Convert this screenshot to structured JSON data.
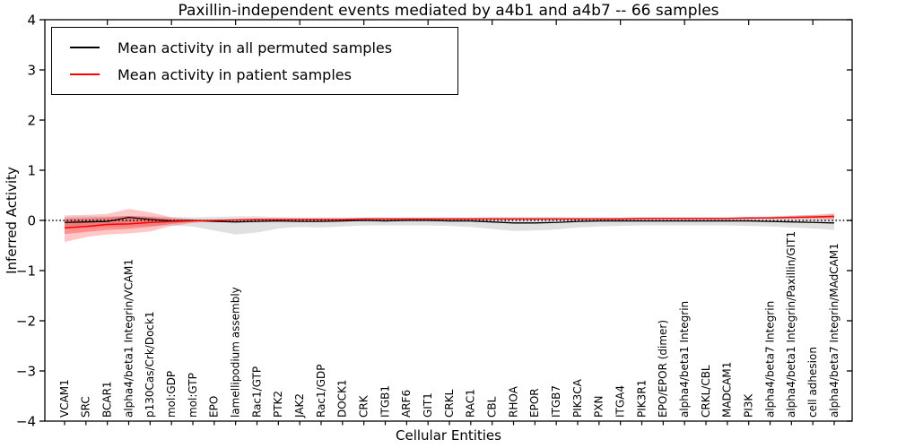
{
  "legend": {
    "items": [
      {
        "label": "Mean activity in all permuted samples",
        "color": "#000000"
      },
      {
        "label": "Mean activity in patient samples",
        "color": "#ff0000"
      }
    ],
    "position": "upper left"
  },
  "chart_data": {
    "type": "line",
    "title": "Paxillin-independent events mediated by a4b1 and a4b7 -- 66 samples",
    "xlabel": "Cellular Entities",
    "ylabel": "Inferred Activity",
    "ylim": [
      -4,
      4
    ],
    "yticks": [
      4,
      3,
      2,
      1,
      0,
      -1,
      -2,
      -3,
      -4
    ],
    "ytick_labels": [
      "4",
      "3",
      "2",
      "1",
      "0",
      "−1",
      "−2",
      "−3",
      "−4"
    ],
    "grid": false,
    "zero_line": true,
    "legend_position": "upper left",
    "categories": [
      "VCAM1",
      "SRC",
      "BCAR1",
      "alpha4/beta1 Integrin/VCAM1",
      "p130Cas/Crk/Dock1",
      "mol:GDP",
      "mol:GTP",
      "EPO",
      "lamellipodium assembly",
      "Rac1/GTP",
      "PTK2",
      "JAK2",
      "Rac1/GDP",
      "DOCK1",
      "CRK",
      "ITGB1",
      "ARF6",
      "GIT1",
      "CRKL",
      "RAC1",
      "CBL",
      "RHOA",
      "EPOR",
      "ITGB7",
      "PIK3CA",
      "PXN",
      "ITGA4",
      "PIK3R1",
      "EPO/EPOR (dimer)",
      "alpha4/beta1 Integrin",
      "CRKL/CBL",
      "MADCAM1",
      "PI3K",
      "alpha4/beta7 Integrin",
      "alpha4/beta1 Integrin/Paxillin/GIT1",
      "cell adhesion",
      "alpha4/beta7 Integrin/MAdCAM1"
    ],
    "series": [
      {
        "name": "Mean activity in all permuted samples",
        "color": "#000000",
        "values": [
          -0.04,
          -0.03,
          -0.02,
          0.06,
          0.02,
          -0.01,
          0,
          -0.02,
          -0.03,
          -0.02,
          -0.01,
          -0.02,
          -0.02,
          -0.01,
          0,
          -0.01,
          0,
          0,
          -0.01,
          -0.01,
          -0.03,
          -0.05,
          -0.05,
          -0.04,
          -0.02,
          -0.01,
          -0.01,
          -0.01,
          -0.01,
          -0.01,
          -0.01,
          -0.01,
          -0.01,
          -0.02,
          -0.03,
          -0.04,
          -0.05
        ]
      },
      {
        "name": "Mean activity in patient samples",
        "color": "#ff0000",
        "values": [
          -0.15,
          -0.12,
          -0.08,
          -0.07,
          -0.04,
          -0.02,
          -0.01,
          0,
          0.01,
          0.02,
          0.02,
          0.02,
          0.02,
          0.02,
          0.03,
          0.03,
          0.03,
          0.03,
          0.03,
          0.03,
          0.03,
          0.03,
          0.03,
          0.03,
          0.03,
          0.03,
          0.03,
          0.04,
          0.04,
          0.04,
          0.04,
          0.04,
          0.05,
          0.05,
          0.06,
          0.07,
          0.08
        ]
      }
    ],
    "bands": [
      {
        "name": "permuted-samples-band",
        "color": "rgba(100,100,100,0.20)",
        "upper": [
          0.07,
          0.08,
          0.08,
          0.09,
          0.08,
          0.07,
          0.06,
          0.07,
          0.08,
          0.08,
          0.07,
          0.06,
          0.06,
          0.06,
          0.06,
          0.06,
          0.06,
          0.06,
          0.06,
          0.06,
          0.07,
          0.07,
          0.07,
          0.07,
          0.06,
          0.06,
          0.06,
          0.06,
          0.06,
          0.06,
          0.06,
          0.06,
          0.07,
          0.08,
          0.1,
          0.11,
          0.12
        ],
        "lower": [
          -0.14,
          -0.14,
          -0.13,
          -0.12,
          -0.11,
          -0.1,
          -0.12,
          -0.2,
          -0.28,
          -0.24,
          -0.16,
          -0.13,
          -0.14,
          -0.12,
          -0.1,
          -0.1,
          -0.1,
          -0.1,
          -0.11,
          -0.13,
          -0.17,
          -0.21,
          -0.2,
          -0.18,
          -0.14,
          -0.12,
          -0.11,
          -0.1,
          -0.1,
          -0.1,
          -0.1,
          -0.1,
          -0.11,
          -0.12,
          -0.14,
          -0.16,
          -0.19
        ]
      },
      {
        "name": "patient-samples-band-outer",
        "color": "rgba(255,0,0,0.22)",
        "upper": [
          0.1,
          0.11,
          0.13,
          0.23,
          0.16,
          0.06,
          0.02,
          0.01,
          0.02,
          0.03,
          0.03,
          0.03,
          0.03,
          0.03,
          0.04,
          0.04,
          0.04,
          0.04,
          0.04,
          0.04,
          0.04,
          0.04,
          0.04,
          0.04,
          0.04,
          0.04,
          0.04,
          0.05,
          0.05,
          0.05,
          0.05,
          0.05,
          0.06,
          0.07,
          0.09,
          0.11,
          0.14
        ],
        "lower": [
          -0.43,
          -0.33,
          -0.28,
          -0.26,
          -0.22,
          -0.11,
          -0.05,
          -0.02,
          0,
          0.01,
          0.01,
          0.01,
          0.01,
          0.01,
          0.02,
          0.02,
          0.02,
          0.02,
          0.02,
          0.02,
          0.02,
          0.02,
          0.02,
          0.02,
          0.02,
          0.02,
          0.02,
          0.03,
          0.03,
          0.03,
          0.03,
          0.03,
          0.03,
          0.04,
          0.04,
          0.03,
          0.02
        ]
      },
      {
        "name": "patient-samples-band-inner",
        "color": "rgba(255,0,0,0.28)",
        "upper": [
          0.03,
          0.04,
          0.06,
          0.09,
          0.07,
          0.03,
          0.01,
          0.01,
          0.02,
          0.03,
          0.03,
          0.03,
          0.03,
          0.03,
          0.03,
          0.03,
          0.04,
          0.04,
          0.04,
          0.04,
          0.04,
          0.04,
          0.04,
          0.04,
          0.04,
          0.04,
          0.04,
          0.04,
          0.04,
          0.04,
          0.05,
          0.05,
          0.05,
          0.06,
          0.07,
          0.08,
          0.1
        ],
        "lower": [
          -0.27,
          -0.23,
          -0.19,
          -0.17,
          -0.13,
          -0.07,
          -0.03,
          -0.01,
          0,
          0.01,
          0.01,
          0.01,
          0.01,
          0.01,
          0.02,
          0.02,
          0.02,
          0.02,
          0.02,
          0.02,
          0.02,
          0.02,
          0.02,
          0.02,
          0.02,
          0.02,
          0.02,
          0.03,
          0.03,
          0.03,
          0.03,
          0.03,
          0.03,
          0.04,
          0.04,
          0.05,
          0.06
        ]
      }
    ]
  }
}
